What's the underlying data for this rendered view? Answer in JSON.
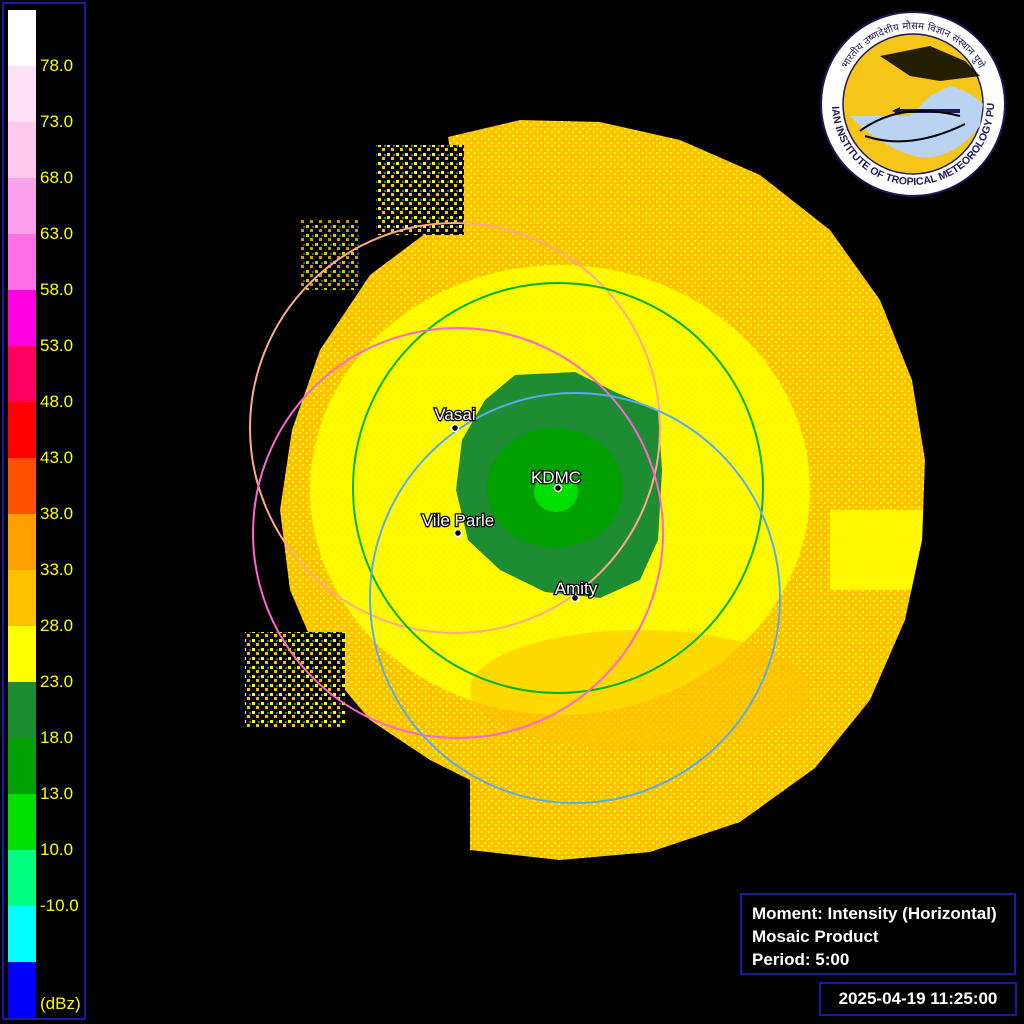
{
  "colorbar": {
    "units": "(dBz)",
    "ticks": [
      "78.0",
      "73.0",
      "68.0",
      "63.0",
      "58.0",
      "53.0",
      "48.0",
      "43.0",
      "38.0",
      "33.0",
      "28.0",
      "23.0",
      "18.0",
      "13.0",
      "10.0",
      "-10.0"
    ],
    "colors": [
      "#ffffff",
      "#ffe0f4",
      "#ffc8ee",
      "#ffa0ec",
      "#ff70e8",
      "#ff00e0",
      "#ff0060",
      "#ff0000",
      "#ff5000",
      "#ffa000",
      "#ffc000",
      "#ffff00",
      "#1e8c32",
      "#00a000",
      "#00e000",
      "#00ff80",
      "#00ffff",
      "#0000ff"
    ]
  },
  "map": {
    "echo_colors": {
      "high": "#ffc000",
      "mid": "#ffff00",
      "low_dark": "#1e8c32",
      "low": "#00a000",
      "core": "#00e000"
    },
    "stations": [
      {
        "name": "Vasai",
        "ring_color": "#ffa890"
      },
      {
        "name": "KDMC",
        "ring_color": "#00b400"
      },
      {
        "name": "Vile Parle",
        "ring_color": "#ff64d2"
      },
      {
        "name": "Amity",
        "ring_color": "#5aaaf0"
      }
    ]
  },
  "logo": {
    "ring_text": "INDIAN INSTITUTE OF TROPICAL METEOROLOGY PUNE",
    "hindi_text": "भारतीय उष्णदेशीय मौसम विज्ञान संस्थान पुणे"
  },
  "info": {
    "moment": "Moment: Intensity (Horizontal)",
    "product": "Mosaic Product",
    "period": "Period: 5:00"
  },
  "timestamp": "2025-04-19 11:25:00"
}
